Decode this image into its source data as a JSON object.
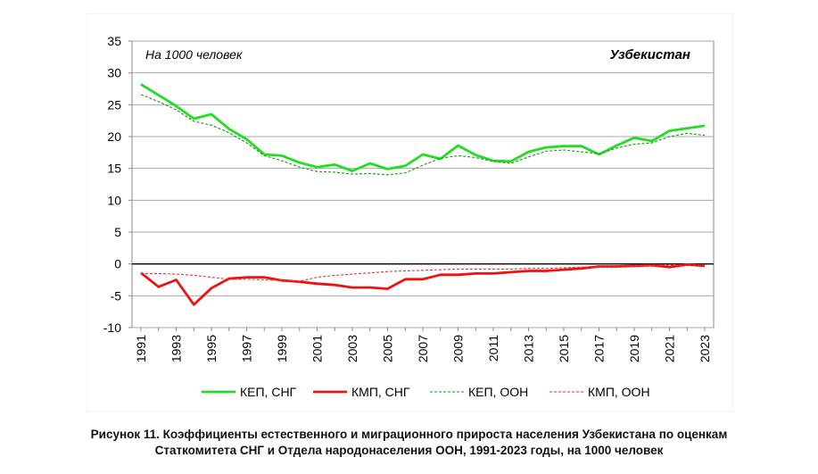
{
  "caption": {
    "line1": "Рисунок 11. Коэффициенты естественного и миграционного прироста населения Узбекистана по оценкам",
    "line2": "Статкомитета СНГ и Отдела народонаселения ООН, 1991-2023 годы, на 1000 человек"
  },
  "chart_data": {
    "type": "line",
    "unit_label": "На 1000 человек",
    "country_label": "Узбекистан",
    "ylim": [
      -10,
      35
    ],
    "yticks": [
      -10,
      -5,
      0,
      5,
      10,
      15,
      20,
      25,
      30,
      35
    ],
    "x": [
      1991,
      1992,
      1993,
      1994,
      1995,
      1996,
      1997,
      1998,
      1999,
      2000,
      2001,
      2002,
      2003,
      2004,
      2005,
      2006,
      2007,
      2008,
      2009,
      2010,
      2011,
      2012,
      2013,
      2014,
      2015,
      2016,
      2017,
      2018,
      2019,
      2020,
      2021,
      2022,
      2023
    ],
    "xtick_labels": [
      "1991",
      "1993",
      "1995",
      "1997",
      "1999",
      "2001",
      "2003",
      "2005",
      "2007",
      "2009",
      "2011",
      "2013",
      "2015",
      "2017",
      "2019",
      "2021",
      "2023"
    ],
    "grid": true,
    "legend_position": "bottom",
    "series": [
      {
        "name": "КЕП, СНГ",
        "color": "#22dd22",
        "style": "solid",
        "values": [
          28.2,
          26.5,
          24.8,
          22.8,
          23.5,
          21.2,
          19.6,
          17.2,
          17.0,
          15.9,
          15.2,
          15.6,
          14.6,
          15.8,
          14.9,
          15.4,
          17.2,
          16.5,
          18.6,
          17.1,
          16.2,
          16.1,
          17.6,
          18.3,
          18.5,
          18.5,
          17.2,
          18.6,
          19.8,
          19.3,
          20.9,
          21.3,
          21.7
        ]
      },
      {
        "name": "КМП, СНГ",
        "color": "#ee1111",
        "style": "solid",
        "values": [
          -1.4,
          -3.6,
          -2.5,
          -6.4,
          -3.8,
          -2.3,
          -2.1,
          -2.1,
          -2.6,
          -2.8,
          -3.1,
          -3.3,
          -3.7,
          -3.7,
          -3.9,
          -2.4,
          -2.4,
          -1.7,
          -1.7,
          -1.5,
          -1.5,
          -1.3,
          -1.1,
          -1.1,
          -0.9,
          -0.7,
          -0.4,
          -0.4,
          -0.3,
          -0.2,
          -0.5,
          -0.1,
          -0.3
        ]
      },
      {
        "name": "КЕП, ООН",
        "color": "#119911",
        "style": "dashed",
        "values": [
          26.6,
          25.5,
          24.2,
          22.4,
          21.8,
          20.6,
          19.0,
          17.0,
          16.2,
          15.2,
          14.5,
          14.4,
          14.1,
          14.2,
          14.0,
          14.3,
          15.5,
          16.6,
          17.0,
          16.7,
          16.1,
          15.8,
          16.8,
          17.7,
          17.9,
          17.6,
          17.3,
          18.2,
          18.8,
          19.0,
          20.0,
          20.5,
          20.2
        ]
      },
      {
        "name": "КМП, ООН",
        "color": "#ee3333",
        "style": "dashed",
        "values": [
          -1.5,
          -1.5,
          -1.6,
          -1.8,
          -2.1,
          -2.4,
          -2.4,
          -2.5,
          -2.6,
          -2.7,
          -2.1,
          -1.8,
          -1.6,
          -1.4,
          -1.2,
          -1.1,
          -1.0,
          -0.9,
          -0.8,
          -0.8,
          -0.8,
          -0.8,
          -0.7,
          -0.7,
          -0.6,
          -0.5,
          -0.4,
          -0.4,
          -0.3,
          -0.2,
          -0.2,
          -0.1,
          -0.1
        ]
      }
    ]
  }
}
